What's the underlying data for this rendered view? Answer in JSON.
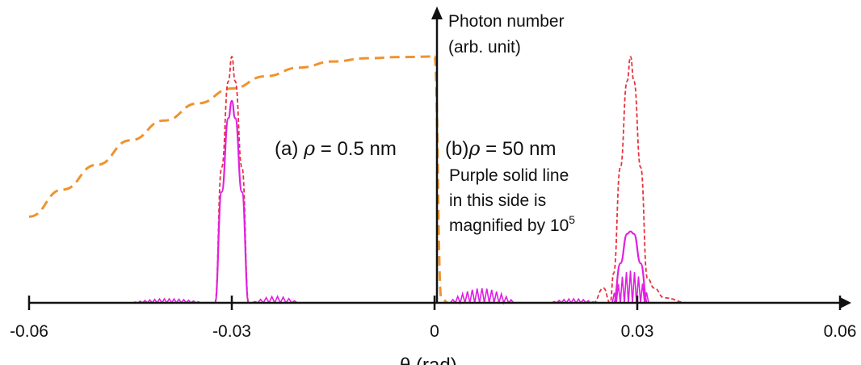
{
  "chart_data": {
    "type": "line",
    "xlabel": "θ (rad)",
    "ylabel": "Photon number (arb. unit)",
    "ylabel_lines": [
      "Photon number",
      "(arb. unit)"
    ],
    "xlim": [
      -0.06,
      0.06
    ],
    "ylim": [
      0,
      1
    ],
    "grid": false,
    "x_ticks": [
      -0.06,
      -0.03,
      0,
      0.03,
      0.06
    ],
    "x_tick_labels": [
      "-0.06",
      "-0.03",
      "0",
      "0.03",
      "0.06"
    ],
    "annotations": {
      "panel_a": {
        "prefix": "(a) ",
        "rho": "ρ",
        "rest": " = 0.5 nm"
      },
      "panel_b": {
        "prefix": "(b)",
        "rho": "ρ",
        "rest": " = 50 nm",
        "lines": [
          "Purple solid line",
          "in this side is",
          "magnified by 10"
        ],
        "exponent": "5"
      }
    },
    "series": [
      {
        "style": "dashed",
        "color": "#f0922e",
        "x": [
          -0.06,
          -0.055,
          -0.05,
          -0.045,
          -0.04,
          -0.035,
          -0.03,
          -0.025,
          -0.02,
          -0.015,
          -0.01,
          -0.005,
          0
        ],
        "values": [
          0.35,
          0.46,
          0.56,
          0.66,
          0.74,
          0.81,
          0.87,
          0.92,
          0.955,
          0.98,
          0.993,
          0.998,
          1.0
        ]
      },
      {
        "style": "dashed",
        "color": "#f0922e",
        "x": [
          0,
          0.001,
          0.002
        ],
        "values": [
          1.0,
          0.02,
          0.0
        ]
      },
      {
        "style": "dashed-fine",
        "color": "#e8323c",
        "x": [
          -0.0325,
          -0.0315,
          -0.0305,
          -0.03,
          -0.0295,
          -0.0285,
          -0.0275,
          0.0235,
          0.025,
          0.026,
          0.0265,
          0.0275,
          0.0285,
          0.029,
          0.0295,
          0.0305,
          0.0315,
          0.0325,
          0.034,
          0.0375
        ],
        "values": [
          0.0,
          0.55,
          0.9,
          1.0,
          0.9,
          0.55,
          0.0,
          0.0,
          0.06,
          0.0,
          0.12,
          0.55,
          0.9,
          1.0,
          0.9,
          0.55,
          0.1,
          0.06,
          0.02,
          0.0
        ]
      },
      {
        "style": "solid",
        "color": "#e020e0",
        "x": [
          -0.0325,
          -0.0315,
          -0.0305,
          -0.03,
          -0.0295,
          -0.0285,
          -0.0275
        ],
        "values": [
          0.0,
          0.45,
          0.75,
          0.82,
          0.75,
          0.45,
          0.0
        ]
      },
      {
        "style": "solid",
        "color": "#e020e0",
        "x": [
          0.0265,
          0.0275,
          0.0285,
          0.029,
          0.0295,
          0.0305,
          0.0315
        ],
        "values": [
          0.0,
          0.16,
          0.28,
          0.29,
          0.28,
          0.16,
          0.0
        ]
      }
    ]
  }
}
